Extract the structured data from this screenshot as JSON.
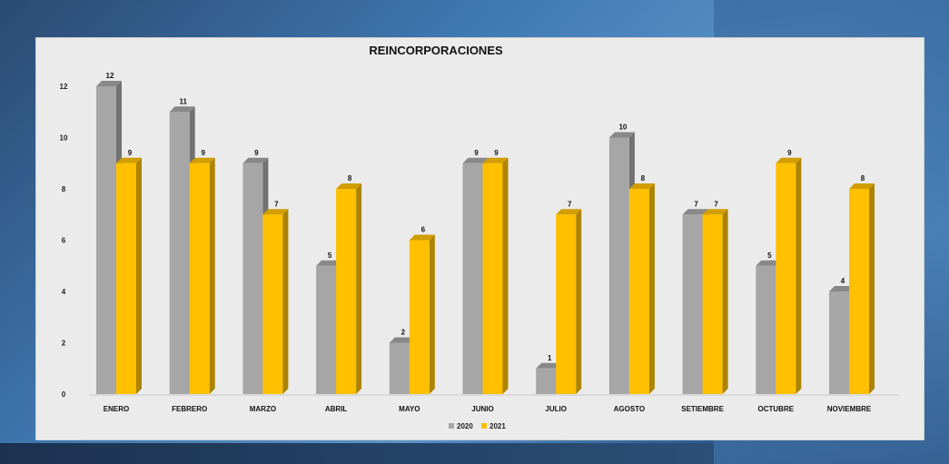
{
  "chart_data": {
    "type": "bar",
    "title": "REINCORPORACIONES",
    "categories": [
      "ENERO",
      "FEBRERO",
      "MARZO",
      "ABRIL",
      "MAYO",
      "JUNIO",
      "JULIO",
      "AGOSTO",
      "SETIEMBRE",
      "OCTUBRE",
      "NOVIEMBRE"
    ],
    "series": [
      {
        "name": "2020",
        "values": [
          12,
          11,
          9,
          5,
          2,
          9,
          1,
          10,
          7,
          5,
          4
        ],
        "color": "#a6a6a6"
      },
      {
        "name": "2021",
        "values": [
          9,
          9,
          7,
          8,
          6,
          9,
          7,
          8,
          7,
          9,
          8
        ],
        "color": "#ffc000"
      }
    ],
    "yticks": [
      0,
      2,
      4,
      6,
      8,
      10,
      12
    ],
    "ylim": [
      0,
      12
    ],
    "xlabel": "",
    "ylabel": "",
    "grid": false,
    "legend": "bottom-center",
    "data_labels": true,
    "style": "3d-clustered-column"
  }
}
